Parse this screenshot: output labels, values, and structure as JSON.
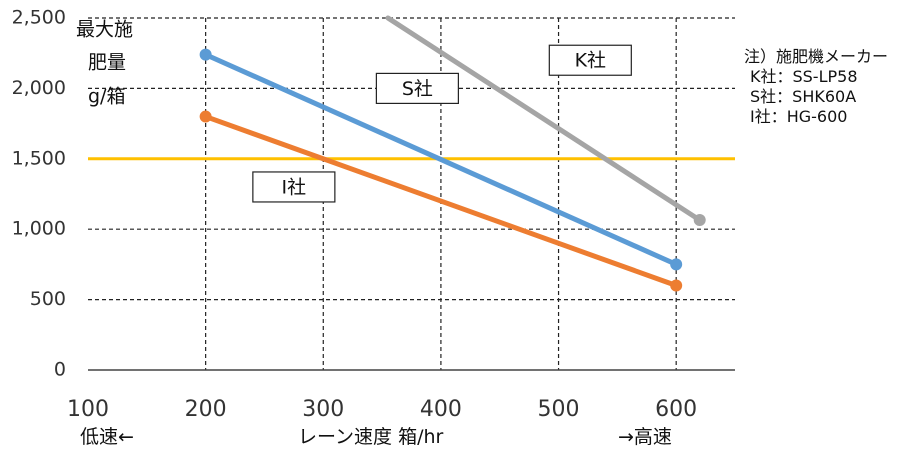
{
  "chart_data": {
    "type": "line",
    "x_ticks": [
      100,
      200,
      300,
      400,
      500,
      600
    ],
    "y_ticks": [
      "0",
      "500",
      "1,000",
      "1,500",
      "2,000",
      "2,500"
    ],
    "y_tick_values": [
      0,
      500,
      1000,
      1500,
      2000,
      2500
    ],
    "xlim": [
      100,
      650
    ],
    "ylim": [
      0,
      2500
    ],
    "grid": true,
    "ylabel_lines": [
      "最大施",
      "肥量",
      "g/箱"
    ],
    "xlabel": "レーン速度 箱/hr",
    "x_left_note": "低速←",
    "x_right_note": "→高速",
    "series": [
      {
        "label": "S社",
        "color": "#5b9bd5",
        "points": [
          [
            200,
            2240
          ],
          [
            600,
            750
          ]
        ]
      },
      {
        "label": "I社",
        "color": "#ed7d31",
        "points": [
          [
            200,
            1800
          ],
          [
            600,
            600
          ]
        ]
      },
      {
        "label": "K社",
        "color": "#a5a5a5",
        "points": [
          [
            355,
            2500
          ],
          [
            620,
            1065
          ]
        ]
      }
    ],
    "threshold": {
      "value": 1500,
      "color": "#ffc000"
    },
    "box_labels": [
      {
        "text": "S社",
        "x": 380,
        "y": 2000
      },
      {
        "text": "I社",
        "x": 275,
        "y": 1300
      },
      {
        "text": "K社",
        "x": 527,
        "y": 2200
      }
    ],
    "notes": [
      "注）施肥機メーカー",
      "K社：SS-LP58",
      "S社：SHK60A",
      "I社：HG-600"
    ]
  }
}
